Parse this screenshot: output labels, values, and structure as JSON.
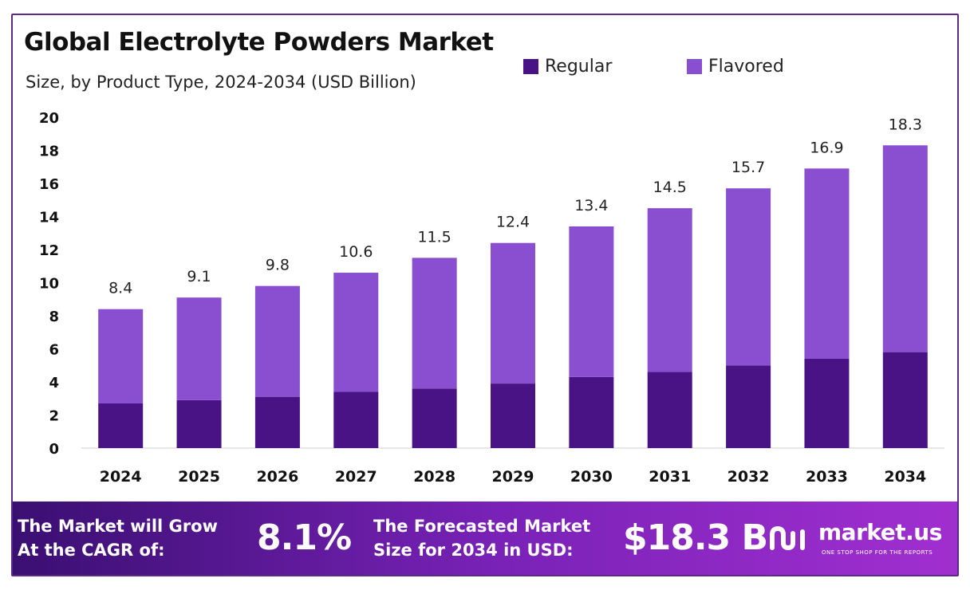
{
  "chart_data": {
    "type": "bar",
    "stacked": true,
    "title": "Global Electrolyte Powders Market",
    "subtitle": "Size, by Product Type, 2024-2034 (USD Billion)",
    "categories": [
      "2024",
      "2025",
      "2026",
      "2027",
      "2028",
      "2029",
      "2030",
      "2031",
      "2032",
      "2033",
      "2034"
    ],
    "series": [
      {
        "name": "Regular",
        "color": "#4a1385",
        "values": [
          2.7,
          2.9,
          3.1,
          3.4,
          3.6,
          3.9,
          4.3,
          4.6,
          5.0,
          5.4,
          5.8
        ]
      },
      {
        "name": "Flavored",
        "color": "#8a4fd0",
        "values": [
          5.7,
          6.2,
          6.7,
          7.2,
          7.9,
          8.5,
          9.1,
          9.9,
          10.7,
          11.5,
          12.5
        ]
      }
    ],
    "totals": [
      8.4,
      9.1,
      9.8,
      10.6,
      11.5,
      12.4,
      13.4,
      14.5,
      15.7,
      16.9,
      18.3
    ],
    "total_labels": [
      "8.4",
      "9.1",
      "9.8",
      "10.6",
      "11.5",
      "12.4",
      "13.4",
      "14.5",
      "15.7",
      "16.9",
      "18.3"
    ],
    "y_ticks": [
      "0",
      "2",
      "4",
      "6",
      "8",
      "10",
      "12",
      "14",
      "16",
      "18",
      "20"
    ],
    "ylim": [
      0,
      20
    ],
    "grid": false,
    "legend_position": "top-right"
  },
  "banner": {
    "cagr_label_line1": "The Market will Grow",
    "cagr_label_line2": "At the CAGR of:",
    "cagr_value": "8.1%",
    "forecast_label_line1": "The Forecasted Market",
    "forecast_label_line2": "Size for 2034 in USD:",
    "forecast_value": "$18.3 B"
  },
  "brand": {
    "name": "market.us",
    "tagline": "ONE STOP SHOP FOR THE REPORTS",
    "logo_icon": "market-us-logo-icon"
  },
  "colors": {
    "border": "#5b2a86",
    "banner_start": "#3a0f72",
    "banner_end": "#a12fd0"
  }
}
